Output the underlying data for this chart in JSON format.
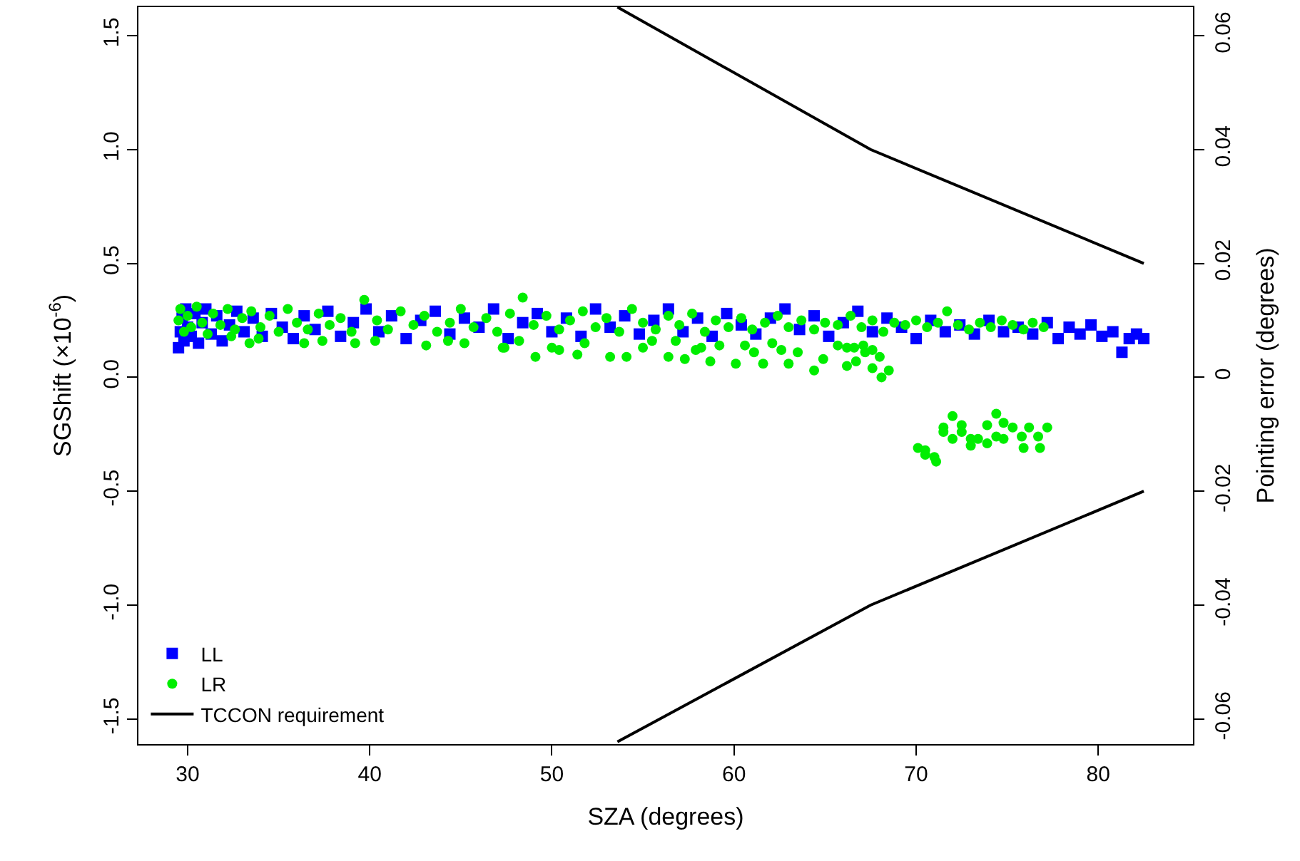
{
  "chart_data": {
    "type": "scatter",
    "xlabel": "SZA (degrees)",
    "ylabel": "SGShift (×10$^{-6}$)",
    "y2label": "Pointing error (degrees)",
    "xlim": [
      27.3,
      85.2
    ],
    "xticks": [
      30,
      40,
      50,
      60,
      70,
      80
    ],
    "ylim": [
      -1.61,
      1.625
    ],
    "yticks": [
      -1.5,
      {
        "value": -1.0,
        "label": "-1.0"
      },
      -0.5,
      {
        "value": 0,
        "label": "0.0"
      },
      0.5,
      {
        "value": 1.0,
        "label": "1.0"
      },
      1.5
    ],
    "y2lim": [
      -0.0644,
      0.065
    ],
    "y2ticks": [
      -0.06,
      -0.04,
      -0.02,
      0,
      0.02,
      0.04,
      0.06
    ],
    "legend": "bottom left",
    "series": [
      {
        "name": "LL",
        "marker": "square",
        "color": "#0000ff",
        "x": [
          29.5,
          29.6,
          29.7,
          29.8,
          29.9,
          30.0,
          30.2,
          30.4,
          30.6,
          30.8,
          31.0,
          31.3,
          31.6,
          31.9,
          32.3,
          32.7,
          33.1,
          33.6,
          34.1,
          34.6,
          35.2,
          35.8,
          36.4,
          37.0,
          37.7,
          38.4,
          39.1,
          39.8,
          40.5,
          41.2,
          42.0,
          42.8,
          43.6,
          44.4,
          45.2,
          46.0,
          46.8,
          47.6,
          48.4,
          49.2,
          50.0,
          50.8,
          51.6,
          52.4,
          53.2,
          54.0,
          54.8,
          55.6,
          56.4,
          57.2,
          58.0,
          58.8,
          59.6,
          60.4,
          61.2,
          62.0,
          62.8,
          63.6,
          64.4,
          65.2,
          66.0,
          66.8,
          67.6,
          68.4,
          69.2,
          70.0,
          70.8,
          71.6,
          72.4,
          73.2,
          74.0,
          74.8,
          75.6,
          76.4,
          77.2,
          77.8,
          78.4,
          79.0,
          79.6,
          80.2,
          80.8,
          81.3,
          81.7,
          82.1,
          82.5
        ],
        "values": [
          0.13,
          0.2,
          0.26,
          0.16,
          0.3,
          0.22,
          0.18,
          0.28,
          0.15,
          0.24,
          0.3,
          0.19,
          0.27,
          0.16,
          0.23,
          0.29,
          0.2,
          0.26,
          0.18,
          0.28,
          0.22,
          0.17,
          0.27,
          0.21,
          0.29,
          0.18,
          0.24,
          0.3,
          0.2,
          0.27,
          0.17,
          0.25,
          0.29,
          0.19,
          0.26,
          0.22,
          0.3,
          0.17,
          0.24,
          0.28,
          0.2,
          0.26,
          0.18,
          0.3,
          0.22,
          0.27,
          0.19,
          0.25,
          0.3,
          0.2,
          0.26,
          0.18,
          0.28,
          0.23,
          0.19,
          0.26,
          0.3,
          0.21,
          0.27,
          0.18,
          0.24,
          0.29,
          0.2,
          0.26,
          0.22,
          0.17,
          0.25,
          0.2,
          0.23,
          0.19,
          0.25,
          0.2,
          0.22,
          0.19,
          0.24,
          0.17,
          0.22,
          0.19,
          0.23,
          0.18,
          0.2,
          0.11,
          0.17,
          0.19,
          0.17
        ]
      },
      {
        "name": "LR",
        "marker": "circle",
        "color": "#00ee00",
        "x": [
          29.5,
          29.6,
          29.8,
          30.0,
          30.2,
          30.5,
          30.8,
          31.1,
          31.4,
          31.8,
          32.2,
          32.6,
          33.0,
          33.5,
          34.0,
          34.5,
          35.0,
          35.5,
          36.0,
          36.6,
          37.2,
          37.8,
          38.4,
          39.0,
          39.7,
          40.4,
          41.0,
          41.7,
          42.4,
          43.0,
          43.7,
          44.4,
          45.0,
          45.7,
          46.4,
          47.0,
          47.7,
          48.4,
          49.0,
          49.7,
          50.4,
          51.0,
          51.7,
          52.4,
          53.0,
          53.7,
          54.4,
          55.0,
          55.7,
          56.4,
          57.0,
          57.7,
          58.4,
          59.0,
          59.7,
          60.4,
          61.0,
          61.7,
          62.4,
          63.0,
          63.7,
          64.4,
          65.0,
          65.7,
          66.4,
          67.0,
          67.6,
          68.2,
          68.8,
          69.4,
          70.0,
          70.6,
          71.2,
          71.7,
          72.3,
          72.9,
          73.5,
          74.1,
          74.7,
          75.3,
          75.9,
          76.4,
          77.0,
          32.4,
          33.4,
          33.9,
          36.4,
          37.4,
          39.2,
          40.3,
          43.1,
          44.3,
          45.2,
          47.3,
          47.4,
          48.2,
          49.1,
          50.0,
          50.4,
          51.4,
          51.8,
          53.2,
          54.1,
          55.0,
          55.5,
          56.4,
          56.8,
          57.3,
          57.9,
          58.2,
          58.7,
          59.2,
          60.1,
          60.6,
          61.1,
          61.6,
          62.1,
          62.6,
          63.0,
          63.5,
          64.4,
          64.9,
          65.7,
          66.2,
          66.2,
          66.6,
          66.7,
          67.1,
          67.2,
          67.6,
          67.6,
          68.0,
          68.1,
          68.5,
          70.1,
          70.5,
          70.5,
          71.0,
          71.1,
          71.5,
          71.5,
          72.0,
          72.0,
          72.5,
          72.5,
          73.0,
          73.0,
          73.4,
          73.9,
          73.9,
          74.4,
          74.4,
          74.8,
          74.8,
          75.3,
          75.8,
          75.9,
          76.2,
          76.7,
          76.8,
          77.2
        ],
        "values": [
          0.25,
          0.3,
          0.2,
          0.27,
          0.22,
          0.31,
          0.24,
          0.19,
          0.28,
          0.23,
          0.3,
          0.21,
          0.26,
          0.29,
          0.22,
          0.27,
          0.2,
          0.3,
          0.24,
          0.21,
          0.28,
          0.23,
          0.26,
          0.2,
          0.34,
          0.25,
          0.21,
          0.29,
          0.23,
          0.27,
          0.2,
          0.24,
          0.3,
          0.22,
          0.26,
          0.2,
          0.28,
          0.35,
          0.23,
          0.27,
          0.21,
          0.25,
          0.29,
          0.22,
          0.26,
          0.2,
          0.3,
          0.24,
          0.21,
          0.27,
          0.23,
          0.28,
          0.2,
          0.25,
          0.22,
          0.26,
          0.21,
          0.24,
          0.27,
          0.22,
          0.25,
          0.21,
          0.24,
          0.23,
          0.27,
          0.22,
          0.25,
          0.2,
          0.24,
          0.23,
          0.25,
          0.22,
          0.24,
          0.29,
          0.23,
          0.21,
          0.24,
          0.22,
          0.25,
          0.23,
          0.21,
          0.24,
          0.22,
          0.18,
          0.15,
          0.17,
          0.15,
          0.16,
          0.15,
          0.16,
          0.14,
          0.16,
          0.15,
          0.13,
          0.13,
          0.16,
          0.09,
          0.13,
          0.12,
          0.1,
          0.15,
          0.09,
          0.09,
          0.13,
          0.16,
          0.09,
          0.16,
          0.08,
          0.12,
          0.13,
          0.07,
          0.14,
          0.06,
          0.14,
          0.11,
          0.06,
          0.15,
          0.12,
          0.06,
          0.11,
          0.03,
          0.08,
          0.14,
          0.05,
          0.13,
          0.13,
          0.07,
          0.14,
          0.11,
          0.12,
          0.04,
          0.09,
          0.0,
          0.03,
          -0.31,
          -0.32,
          -0.34,
          -0.35,
          -0.37,
          -0.22,
          -0.24,
          -0.17,
          -0.27,
          -0.21,
          -0.24,
          -0.27,
          -0.3,
          -0.27,
          -0.21,
          -0.29,
          -0.16,
          -0.26,
          -0.27,
          -0.2,
          -0.22,
          -0.26,
          -0.31,
          -0.22,
          -0.26,
          -0.31,
          -0.22
        ]
      },
      {
        "name": "TCCON requirement",
        "type": "line",
        "axis": "y2",
        "color": "#000000",
        "line_style": "solid",
        "x": [
          53.6,
          67.5,
          82.5
        ],
        "values": [
          0.065,
          0.04,
          0.02
        ]
      },
      {
        "type": "line",
        "axis": "y2",
        "color": "#000000",
        "line_style": "solid",
        "x": [
          53.6,
          67.5,
          82.5
        ],
        "values": [
          -0.064,
          -0.04,
          -0.02
        ]
      }
    ]
  }
}
